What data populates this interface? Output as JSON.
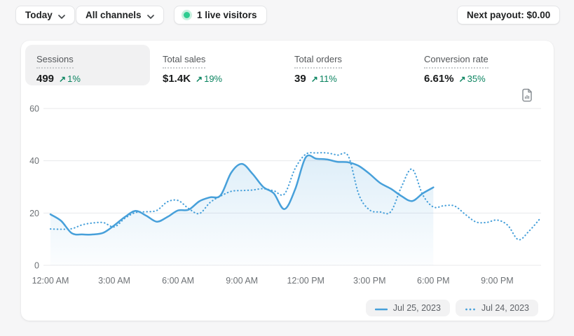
{
  "toolbar": {
    "date_range_label": "Today",
    "channel_label": "All channels",
    "live_visitors_label": "1 live visitors",
    "payout_label": "Next payout: $0.00"
  },
  "icons": {
    "trend_up": "↗"
  },
  "metrics": [
    {
      "id": "sessions",
      "label": "Sessions",
      "value": "499",
      "delta": "1%",
      "selected": true
    },
    {
      "id": "total-sales",
      "label": "Total sales",
      "value": "$1.4K",
      "delta": "19%",
      "selected": false
    },
    {
      "id": "total-orders",
      "label": "Total orders",
      "value": "39",
      "delta": "11%",
      "selected": false
    },
    {
      "id": "conversion-rate",
      "label": "Conversion rate",
      "value": "6.61%",
      "delta": "35%",
      "selected": false
    }
  ],
  "colors": {
    "accent_blue": "#47a0da",
    "success_green": "#0b8460",
    "live_green": "#2ecc90",
    "grid": "#e8e9eb",
    "axis_text": "#6d7175",
    "page_bg": "#f6f6f7",
    "selected_tab_bg": "#f1f1f2"
  },
  "chart_data": {
    "type": "line",
    "title": "Sessions",
    "xlabel": "",
    "ylabel": "",
    "ylim": [
      0,
      60
    ],
    "xlim_hours": [
      0,
      23
    ],
    "grid": "horizontal",
    "legend_position": "bottom-right",
    "y_ticks": [
      0,
      20,
      40,
      60
    ],
    "x_ticks": [
      {
        "h": 0,
        "label": "12:00 AM"
      },
      {
        "h": 3,
        "label": "3:00 AM"
      },
      {
        "h": 6,
        "label": "6:00 AM"
      },
      {
        "h": 9,
        "label": "9:00 AM"
      },
      {
        "h": 12,
        "label": "12:00 PM"
      },
      {
        "h": 15,
        "label": "3:00 PM"
      },
      {
        "h": 18,
        "label": "6:00 PM"
      },
      {
        "h": 21,
        "label": "9:00 PM"
      }
    ],
    "series": [
      {
        "name": "Jul 25, 2023",
        "style": "solid",
        "fill": true,
        "color": "#47a0da",
        "points": [
          [
            0,
            19.5
          ],
          [
            0.5,
            17
          ],
          [
            1,
            12.3
          ],
          [
            1.5,
            11.8
          ],
          [
            2,
            11.8
          ],
          [
            2.5,
            12.5
          ],
          [
            3,
            15.3
          ],
          [
            3.5,
            18.5
          ],
          [
            4,
            20.8
          ],
          [
            4.5,
            19
          ],
          [
            5,
            16.7
          ],
          [
            5.5,
            18.5
          ],
          [
            6,
            21
          ],
          [
            6.5,
            21.3
          ],
          [
            7,
            24.5
          ],
          [
            7.5,
            26
          ],
          [
            8,
            26.8
          ],
          [
            8.5,
            35.5
          ],
          [
            9,
            38.8
          ],
          [
            9.5,
            35
          ],
          [
            10,
            30
          ],
          [
            10.5,
            27.5
          ],
          [
            11,
            21.5
          ],
          [
            11.5,
            29
          ],
          [
            12,
            41.3
          ],
          [
            12.5,
            40.8
          ],
          [
            13,
            40.5
          ],
          [
            13.5,
            39.6
          ],
          [
            14,
            39.4
          ],
          [
            14.5,
            38
          ],
          [
            15,
            35
          ],
          [
            15.5,
            31.5
          ],
          [
            16,
            29.3
          ],
          [
            16.5,
            26.5
          ],
          [
            17,
            24.6
          ],
          [
            17.5,
            27.5
          ],
          [
            18,
            29.8
          ]
        ]
      },
      {
        "name": "Jul 24, 2023",
        "style": "dotted",
        "fill": false,
        "color": "#47a0da",
        "points": [
          [
            0,
            13.9
          ],
          [
            0.5,
            13.8
          ],
          [
            1,
            14
          ],
          [
            1.5,
            15.5
          ],
          [
            2,
            16.2
          ],
          [
            2.5,
            16.3
          ],
          [
            3,
            14.7
          ],
          [
            3.5,
            18
          ],
          [
            4,
            20.2
          ],
          [
            4.5,
            20.5
          ],
          [
            5,
            21
          ],
          [
            5.5,
            24.3
          ],
          [
            6,
            24.8
          ],
          [
            6.5,
            21.7
          ],
          [
            7,
            19.8
          ],
          [
            7.5,
            24
          ],
          [
            8,
            26.5
          ],
          [
            8.5,
            28.3
          ],
          [
            9,
            28.6
          ],
          [
            9.5,
            28.8
          ],
          [
            10,
            29.3
          ],
          [
            10.5,
            28.5
          ],
          [
            11,
            27.3
          ],
          [
            11.5,
            37
          ],
          [
            12,
            42.5
          ],
          [
            12.5,
            43
          ],
          [
            13,
            43
          ],
          [
            13.5,
            42.2
          ],
          [
            14,
            41.8
          ],
          [
            14.5,
            27
          ],
          [
            15,
            21.2
          ],
          [
            15.5,
            20.4
          ],
          [
            16,
            20.5
          ],
          [
            16.5,
            30
          ],
          [
            17,
            36.8
          ],
          [
            17.5,
            27
          ],
          [
            18,
            22.3
          ],
          [
            18.5,
            22.8
          ],
          [
            19,
            22.7
          ],
          [
            19.5,
            19.5
          ],
          [
            20,
            16.6
          ],
          [
            20.5,
            16.4
          ],
          [
            21,
            17.3
          ],
          [
            21.5,
            15.3
          ],
          [
            22,
            9.8
          ],
          [
            22.5,
            13.1
          ],
          [
            23,
            17.7
          ]
        ]
      }
    ]
  }
}
